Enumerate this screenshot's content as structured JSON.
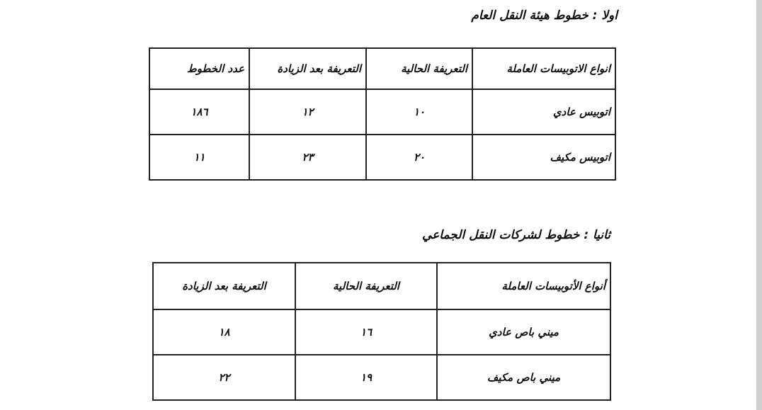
{
  "section1": {
    "heading": "اولا : خطوط هيئة النقل العام",
    "headers": [
      "انواع الاتوبيسات العاملة",
      "التعريفة الحالية",
      "التعريفة بعد الزيادة",
      "عدد الخطوط"
    ],
    "rows": [
      [
        "اتوبيس عادي",
        "١٠",
        "١٢",
        "١٨٦"
      ],
      [
        "اتوبيس مكيف",
        "٢٠",
        "٢٣",
        "١١"
      ]
    ]
  },
  "section2": {
    "heading": "ثانيا : خطوط لشركات النقل الجماعي",
    "headers": [
      "أنواع الأتوبيسات العاملة",
      "التعريفة الحالية",
      "التعريفة بعد الزيادة"
    ],
    "rows": [
      [
        "ميني باص عادي",
        "١٦",
        "١٨"
      ],
      [
        "ميني باص مكيف",
        "١٩",
        "٢٢"
      ]
    ]
  }
}
